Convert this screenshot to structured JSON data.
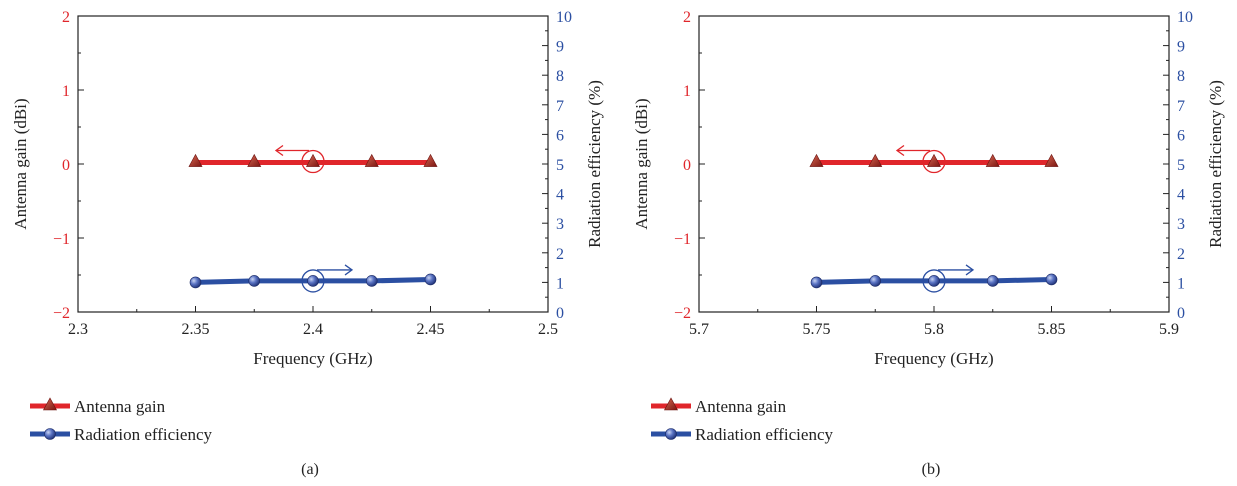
{
  "chart_data": [
    {
      "type": "line",
      "panel_label": "(a)",
      "xlabel": "Frequency (GHz)",
      "ylabel_left": "Antenna gain (dBi)",
      "ylabel_right": "Radiation efficiency (%)",
      "xlim": [
        2.3,
        2.5
      ],
      "xticks": [
        2.3,
        2.35,
        2.4,
        2.45,
        2.5
      ],
      "xtick_labels": [
        "2.3",
        "2.35",
        "2.4",
        "2.45",
        "2.5"
      ],
      "ylim_left": [
        -2,
        2
      ],
      "yticks_left": [
        -2,
        -1,
        0,
        1,
        2
      ],
      "ytick_labels_left": [
        "−2",
        "−1",
        "0",
        "1",
        "2"
      ],
      "ylim_right": [
        0,
        10
      ],
      "yticks_right": [
        0,
        1,
        2,
        3,
        4,
        5,
        6,
        7,
        8,
        9,
        10
      ],
      "ytick_labels_right": [
        "0",
        "1",
        "2",
        "3",
        "4",
        "5",
        "6",
        "7",
        "8",
        "9",
        "10"
      ],
      "annotation_x": 2.4,
      "series": [
        {
          "name": "Antenna gain",
          "axis": "left",
          "color": "#e0262b",
          "marker": "triangle",
          "x": [
            2.35,
            2.375,
            2.4,
            2.425,
            2.45
          ],
          "y": [
            0.02,
            0.02,
            0.02,
            0.02,
            0.02
          ]
        },
        {
          "name": "Radiation efficiency",
          "axis": "right",
          "color": "#2b4fa2",
          "marker": "circle",
          "x": [
            2.35,
            2.375,
            2.4,
            2.425,
            2.45
          ],
          "y": [
            1.0,
            1.05,
            1.05,
            1.05,
            1.1
          ]
        }
      ],
      "legend_position": "bottom-left"
    },
    {
      "type": "line",
      "panel_label": "(b)",
      "xlabel": "Frequency (GHz)",
      "ylabel_left": "Antenna gain (dBi)",
      "ylabel_right": "Radiation efficiency (%)",
      "xlim": [
        5.7,
        5.9
      ],
      "xticks": [
        5.7,
        5.75,
        5.8,
        5.85,
        5.9
      ],
      "xtick_labels": [
        "5.7",
        "5.75",
        "5.8",
        "5.85",
        "5.9"
      ],
      "ylim_left": [
        -2,
        2
      ],
      "yticks_left": [
        -2,
        -1,
        0,
        1,
        2
      ],
      "ytick_labels_left": [
        "−2",
        "−1",
        "0",
        "1",
        "2"
      ],
      "ylim_right": [
        0,
        10
      ],
      "yticks_right": [
        0,
        1,
        2,
        3,
        4,
        5,
        6,
        7,
        8,
        9,
        10
      ],
      "ytick_labels_right": [
        "0",
        "1",
        "2",
        "3",
        "4",
        "5",
        "6",
        "7",
        "8",
        "9",
        "10"
      ],
      "annotation_x": 5.8,
      "series": [
        {
          "name": "Antenna gain",
          "axis": "left",
          "color": "#e0262b",
          "marker": "triangle",
          "x": [
            5.75,
            5.775,
            5.8,
            5.825,
            5.85
          ],
          "y": [
            0.02,
            0.02,
            0.02,
            0.02,
            0.02
          ]
        },
        {
          "name": "Radiation efficiency",
          "axis": "right",
          "color": "#2b4fa2",
          "marker": "circle",
          "x": [
            5.75,
            5.775,
            5.8,
            5.825,
            5.85
          ],
          "y": [
            1.0,
            1.05,
            1.05,
            1.05,
            1.1
          ]
        }
      ],
      "legend_position": "bottom-left"
    }
  ]
}
